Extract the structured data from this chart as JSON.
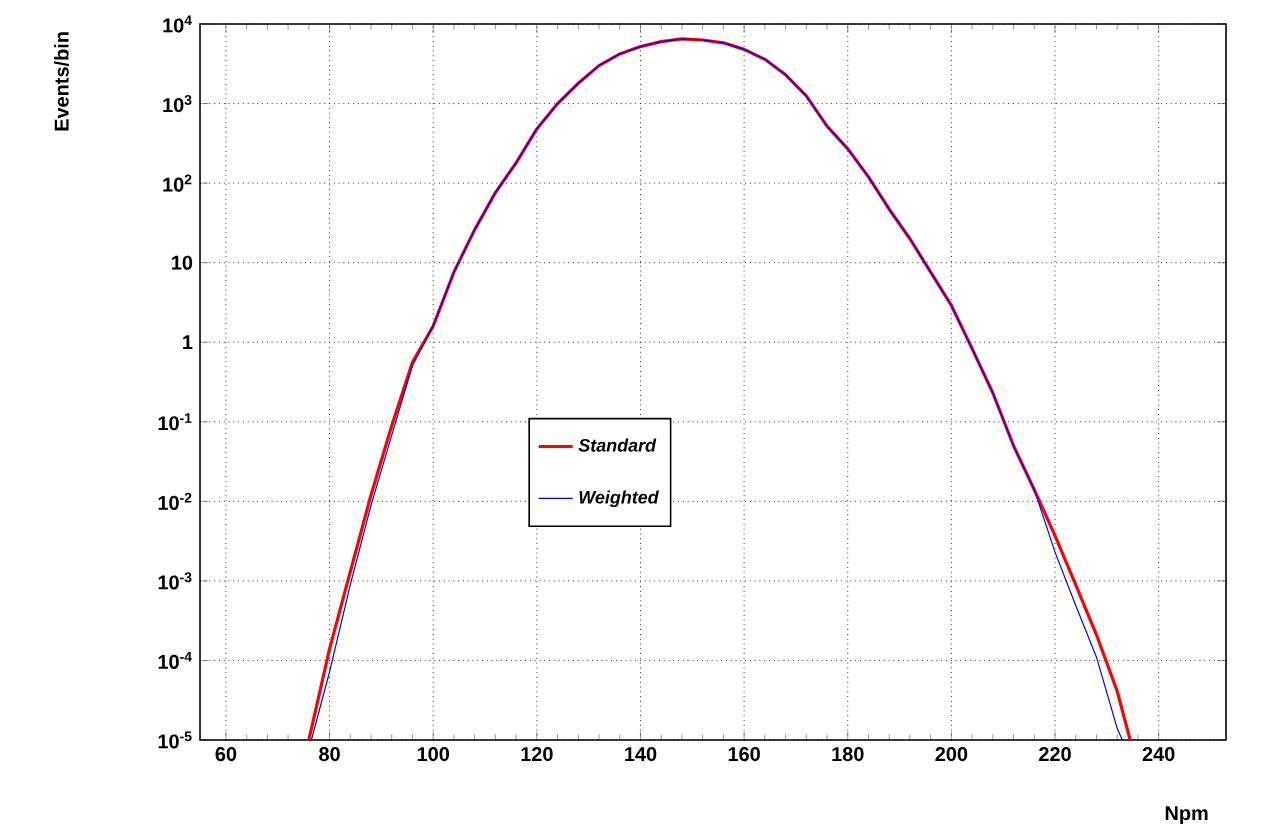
{
  "chart_data": {
    "type": "line",
    "xlabel": "Npm",
    "ylabel": "Events/bin",
    "log": "y",
    "grid": true,
    "legend": "center",
    "marker": "none",
    "line_style": "solid",
    "xlim": [
      55,
      253
    ],
    "ylim": [
      1e-05,
      10000
    ],
    "xticks": [
      60,
      80,
      100,
      120,
      140,
      160,
      180,
      200,
      220,
      240
    ],
    "yticks": [
      {
        "value": 1e-05,
        "label": "10$^{-5}$"
      },
      {
        "value": 0.0001,
        "label": "10$^{-4}$"
      },
      {
        "value": 0.001,
        "label": "10$^{-3}$"
      },
      {
        "value": 0.01,
        "label": "10$^{-2}$"
      },
      {
        "value": 0.1,
        "label": "10$^{-1}$"
      },
      {
        "value": 1,
        "label": "1"
      },
      {
        "value": 10,
        "label": "10"
      },
      {
        "value": 100,
        "label": "10$^{2}$"
      },
      {
        "value": 1000,
        "label": "10$^{3}$"
      },
      {
        "value": 10000,
        "label": "10$^{4}$"
      }
    ],
    "series": [
      {
        "name": "Standard",
        "color": "#ff0000",
        "x": [
          76,
          80,
          84,
          88,
          92,
          96,
          100,
          104,
          108,
          112,
          116,
          120,
          124,
          128,
          132,
          136,
          140,
          144,
          148,
          152,
          156,
          160,
          164,
          168,
          172,
          176,
          180,
          184,
          188,
          192,
          196,
          200,
          204,
          208,
          212,
          216,
          220,
          224,
          228,
          232,
          234.5
        ],
        "values": [
          1e-05,
          0.00014,
          0.0013,
          0.012,
          0.089,
          0.56,
          1.6,
          7.6,
          26,
          76,
          180,
          480,
          1000,
          1800,
          3000,
          4200,
          5200,
          6000,
          6500,
          6300,
          5800,
          4800,
          3600,
          2300,
          1250,
          520,
          270,
          120,
          47,
          20,
          7.6,
          2.9,
          0.83,
          0.23,
          0.05,
          0.014,
          0.0037,
          0.00089,
          0.00021,
          4.1e-05,
          1e-05
        ]
      },
      {
        "name": "Weighted",
        "color": "#0000ff",
        "x": [
          76.5,
          80,
          84,
          88,
          92,
          96,
          100,
          104,
          108,
          112,
          116,
          120,
          124,
          128,
          132,
          136,
          140,
          144,
          148,
          152,
          156,
          160,
          164,
          168,
          172,
          176,
          180,
          184,
          188,
          192,
          196,
          200,
          204,
          208,
          212,
          216,
          220,
          224,
          228,
          232,
          233
        ],
        "values": [
          1e-05,
          7.2e-05,
          0.00089,
          0.0089,
          0.068,
          0.51,
          1.6,
          7.6,
          26,
          76,
          180,
          480,
          1000,
          1800,
          3000,
          4200,
          5200,
          6000,
          6500,
          6300,
          5800,
          4800,
          3600,
          2300,
          1250,
          520,
          270,
          120,
          47,
          20,
          7.6,
          2.9,
          0.83,
          0.23,
          0.05,
          0.014,
          0.0023,
          0.00049,
          0.00011,
          1.4e-05,
          1e-05
        ]
      }
    ]
  }
}
